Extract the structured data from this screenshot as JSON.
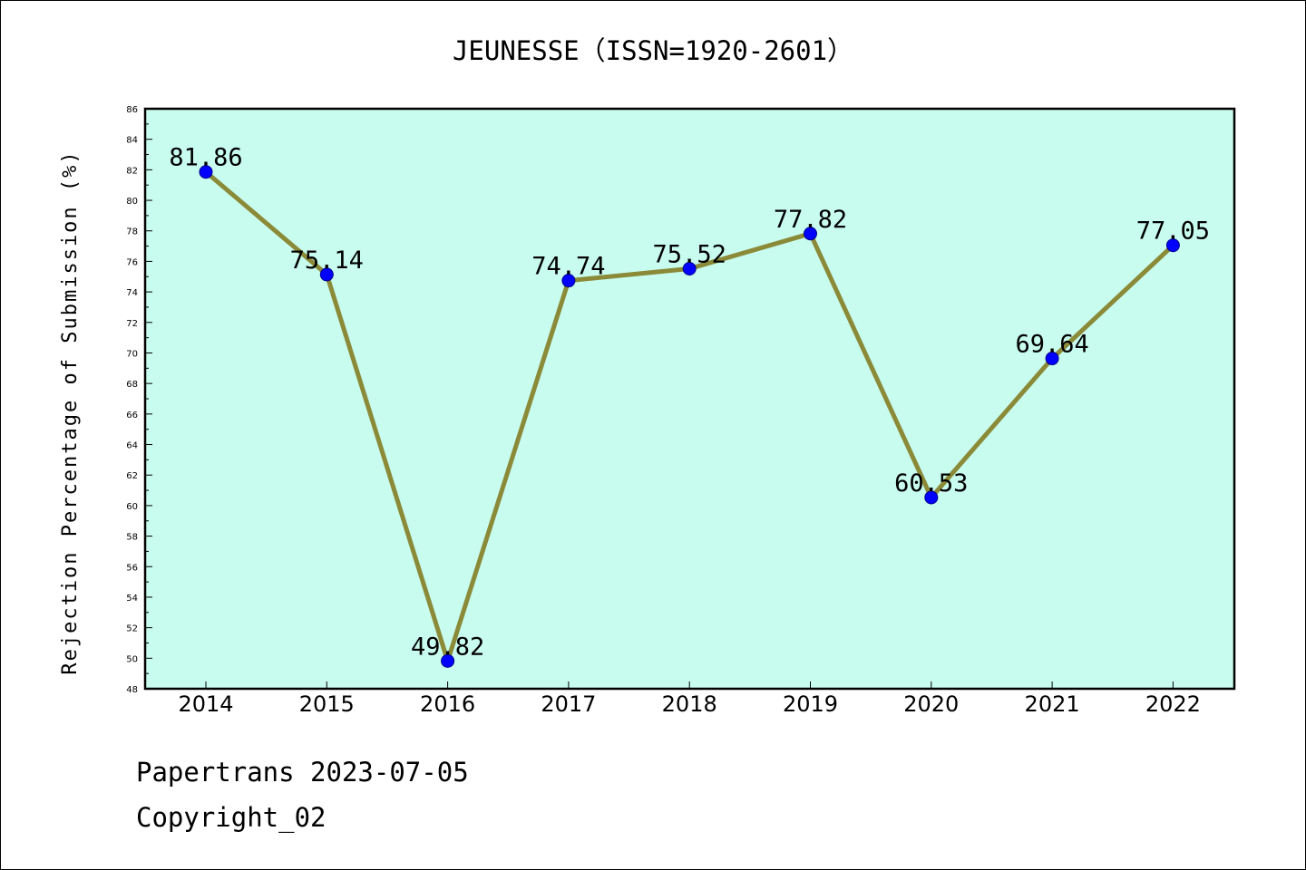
{
  "chart_data": {
    "type": "line",
    "title": "JEUNESSE（ISSN=1920-2601）",
    "xlabel": "",
    "ylabel": "Rejection Percentage of Submission (%)",
    "categories": [
      "2014",
      "2015",
      "2016",
      "2017",
      "2018",
      "2019",
      "2020",
      "2021",
      "2022"
    ],
    "series": [
      {
        "values": [
          81.86,
          75.14,
          49.82,
          74.74,
          75.52,
          77.82,
          60.53,
          69.64,
          77.05
        ]
      }
    ],
    "data_labels": [
      "81.86",
      "75.14",
      "49.82",
      "74.74",
      "75.52",
      "77.82",
      "60.53",
      "69.64",
      "77.05"
    ],
    "ylim": [
      48,
      86
    ],
    "yticks": [
      "48",
      "50",
      "52",
      "54",
      "56",
      "58",
      "60",
      "62",
      "64",
      "66",
      "68",
      "70",
      "72",
      "74",
      "76",
      "78",
      "80",
      "82",
      "84",
      "86"
    ],
    "grid": false,
    "colors": {
      "plot_background": "#c8fcee",
      "line": "#8b8a38",
      "marker": "#0000ff"
    }
  },
  "footer": {
    "line1": "Papertrans 2023-07-05",
    "line2": "Copyright_02"
  }
}
